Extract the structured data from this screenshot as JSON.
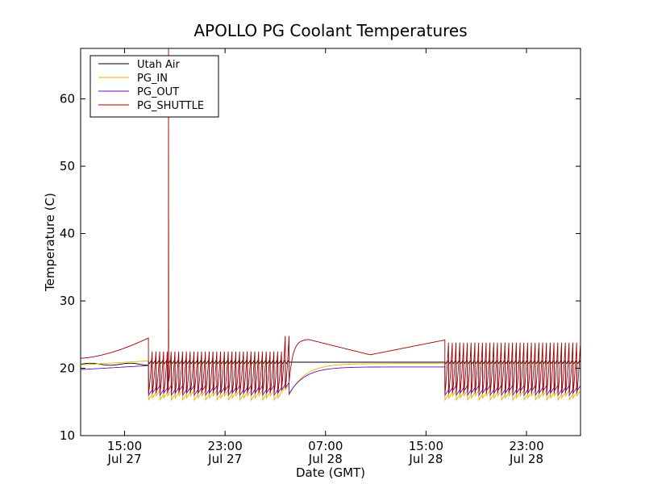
{
  "chart_data": {
    "type": "line",
    "title": "APOLLO PG Coolant Temperatures",
    "xlabel": "Date (GMT)",
    "ylabel": "Temperature (C)",
    "ylim": [
      10,
      67.5
    ],
    "xlim_hours": [
      0,
      39.8
    ],
    "yticks": [
      10,
      20,
      30,
      40,
      50,
      60
    ],
    "xticks": [
      {
        "hour": 3.5,
        "time": "15:00",
        "date": "Jul 27"
      },
      {
        "hour": 11.5,
        "time": "23:00",
        "date": "Jul 27"
      },
      {
        "hour": 19.5,
        "time": "07:00",
        "date": "Jul 28"
      },
      {
        "hour": 27.5,
        "time": "15:00",
        "date": "Jul 28"
      },
      {
        "hour": 35.5,
        "time": "23:00",
        "date": "Jul 28"
      }
    ],
    "legend_position": "top-left",
    "series": [
      {
        "name": "Utah Air",
        "color": "#000000"
      },
      {
        "name": "PG_IN",
        "color": "#e8b000"
      },
      {
        "name": "PG_OUT",
        "color": "#6a0dad"
      },
      {
        "name": "PG_SHUTTLE",
        "color": "#a00000"
      }
    ],
    "segments": [
      {
        "start": 0.0,
        "end": 5.4,
        "mode": "steady",
        "utah": 20.6,
        "in": [
          20.5,
          21.1
        ],
        "out": [
          19.8,
          20.4
        ],
        "shuttle": [
          21.5,
          24.5
        ]
      },
      {
        "start": 5.4,
        "end": 16.0,
        "mode": "cycling",
        "utah": 20.9,
        "in_low": 15.3,
        "out_low": 16.0,
        "shuttle_high": 22.5,
        "spike": {
          "hour": 7.0,
          "value": 67.5
        }
      },
      {
        "start": 16.0,
        "end": 16.6,
        "mode": "cycling",
        "utah": 20.9,
        "in_low": 16.5,
        "out_low": 16.8,
        "shuttle_high": 24.8
      },
      {
        "start": 16.6,
        "end": 29.0,
        "mode": "recovery",
        "utah": 20.9,
        "in": [
          16.0,
          20.7
        ],
        "out": [
          16.2,
          20.2
        ],
        "shuttle": [
          18.0,
          24.3,
          22.0,
          24.2
        ]
      },
      {
        "start": 29.0,
        "end": 39.8,
        "mode": "cycling",
        "utah": 20.9,
        "in_low": 15.3,
        "out_low": 16.0,
        "shuttle_high": 23.8
      }
    ]
  }
}
